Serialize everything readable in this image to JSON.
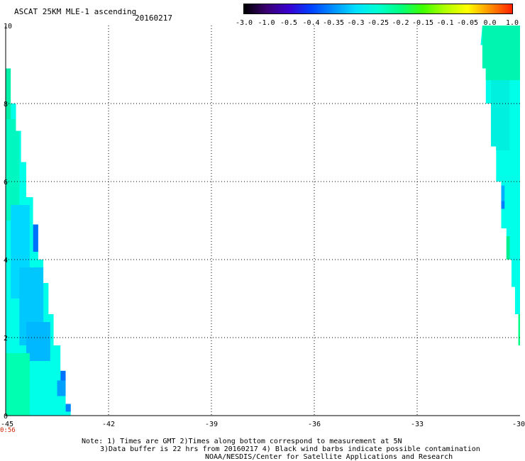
{
  "header": {
    "title": "ASCAT 25KM MLE-1 ascending",
    "date": "20160217"
  },
  "colorbar": {
    "labels": [
      "-3.0",
      "-1.0",
      "-0.5",
      "-0.4",
      "-0.35",
      "-0.3",
      "-0.25",
      "-0.2",
      "-0.15",
      "-0.1",
      "-0.05",
      "0.0",
      "1.0"
    ],
    "colors": [
      "#000000",
      "#3a0070",
      "#3a00d0",
      "#0040ff",
      "#0090ff",
      "#00e0ff",
      "#00ffd0",
      "#00ff80",
      "#40ff00",
      "#b0ff00",
      "#ffff00",
      "#ff9000",
      "#ff2000"
    ]
  },
  "axes": {
    "x_ticks": [
      "-45",
      "-42",
      "-39",
      "-36",
      "-33",
      "-30"
    ],
    "y_ticks": [
      "0",
      "2",
      "4",
      "6",
      "8",
      "10"
    ],
    "time_label": "0:56"
  },
  "footer": {
    "note_line1": "Note: 1) Times are GMT 2)Times along bottom correspond to measurement at 5N",
    "note_line2": "3)Data buffer is 22 hrs from 20160217 4) Black wind barbs indicate possible contamination",
    "credit": "NOAA/NESDIS/Center for Satellite Applications and Research"
  },
  "swaths": {
    "left": {
      "edge": [
        [
          -45,
          8.9
        ],
        [
          -44.85,
          8.9
        ],
        [
          -44.85,
          8.0
        ],
        [
          -44.7,
          8.0
        ],
        [
          -44.7,
          7.3
        ],
        [
          -44.55,
          7.3
        ],
        [
          -44.55,
          6.5
        ],
        [
          -44.4,
          6.5
        ],
        [
          -44.4,
          5.6
        ],
        [
          -44.2,
          5.6
        ],
        [
          -44.2,
          4.9
        ],
        [
          -44.05,
          4.9
        ],
        [
          -44.05,
          4.0
        ],
        [
          -43.9,
          4.0
        ],
        [
          -43.9,
          3.4
        ],
        [
          -43.75,
          3.4
        ],
        [
          -43.75,
          2.6
        ],
        [
          -43.6,
          2.6
        ],
        [
          -43.6,
          1.8
        ],
        [
          -43.4,
          1.8
        ],
        [
          -43.4,
          1.15
        ],
        [
          -43.25,
          1.15
        ],
        [
          -43.25,
          0.3
        ],
        [
          -43.1,
          0.3
        ],
        [
          -43.1,
          0
        ],
        [
          -45,
          0
        ]
      ],
      "patches": [
        {
          "lon": [
            -45,
            -44.85
          ],
          "lat": [
            7.6,
            8.9
          ],
          "color": "#00f0a8"
        },
        {
          "lon": [
            -45,
            -44.6
          ],
          "lat": [
            5.0,
            7.6
          ],
          "color": "#00f8c0"
        },
        {
          "lon": [
            -44.85,
            -44.3
          ],
          "lat": [
            3.0,
            5.4
          ],
          "color": "#00d8ff"
        },
        {
          "lon": [
            -44.6,
            -43.9
          ],
          "lat": [
            1.8,
            3.8
          ],
          "color": "#00c8ff"
        },
        {
          "lon": [
            -44.4,
            -43.7
          ],
          "lat": [
            1.4,
            2.4
          ],
          "color": "#00b8ff"
        },
        {
          "lon": [
            -45,
            -44.3
          ],
          "lat": [
            0,
            1.6
          ],
          "color": "#00ffb0"
        },
        {
          "lon": [
            -44.2,
            -44.05
          ],
          "lat": [
            4.2,
            4.9
          ],
          "color": "#0070ff"
        },
        {
          "lon": [
            -43.4,
            -43.25
          ],
          "lat": [
            0.9,
            1.15
          ],
          "color": "#0070ff"
        },
        {
          "lon": [
            -43.25,
            -43.1
          ],
          "lat": [
            0.1,
            0.3
          ],
          "color": "#0080ff"
        },
        {
          "lon": [
            -43.5,
            -43.25
          ],
          "lat": [
            0.5,
            0.9
          ],
          "color": "#00a0ff"
        }
      ]
    },
    "right": {
      "edge": [
        [
          -31.1,
          10
        ],
        [
          -30,
          10
        ],
        [
          -30,
          1.8
        ],
        [
          -30.05,
          1.8
        ],
        [
          -30.05,
          2.6
        ],
        [
          -30.15,
          2.6
        ],
        [
          -30.15,
          3.3
        ],
        [
          -30.25,
          3.3
        ],
        [
          -30.25,
          4.0
        ],
        [
          -30.4,
          4.0
        ],
        [
          -30.4,
          4.8
        ],
        [
          -30.55,
          4.8
        ],
        [
          -30.55,
          6.0
        ],
        [
          -30.7,
          6.0
        ],
        [
          -30.7,
          6.9
        ],
        [
          -30.85,
          6.9
        ],
        [
          -30.85,
          8.0
        ],
        [
          -31.0,
          8.0
        ],
        [
          -31.0,
          8.9
        ],
        [
          -31.1,
          8.9
        ],
        [
          -31.1,
          9.5
        ],
        [
          -31.15,
          9.5
        ]
      ],
      "patches": [
        {
          "lon": [
            -31.1,
            -30
          ],
          "lat": [
            8.6,
            10
          ],
          "color": "#00f5b0"
        },
        {
          "lon": [
            -30.85,
            -30.3
          ],
          "lat": [
            6.8,
            8.6
          ],
          "color": "#00f0e0"
        },
        {
          "lon": [
            -30.55,
            -30.45
          ],
          "lat": [
            5.3,
            5.5
          ],
          "color": "#0080ff"
        },
        {
          "lon": [
            -30.55,
            -30.45
          ],
          "lat": [
            5.5,
            5.9
          ],
          "color": "#00b0ff"
        },
        {
          "lon": [
            -30.4,
            -30.3
          ],
          "lat": [
            4.0,
            4.6
          ],
          "color": "#00f090"
        },
        {
          "lon": [
            -30.05,
            -30
          ],
          "lat": [
            1.8,
            2.6
          ],
          "color": "#00ff80"
        }
      ]
    }
  }
}
